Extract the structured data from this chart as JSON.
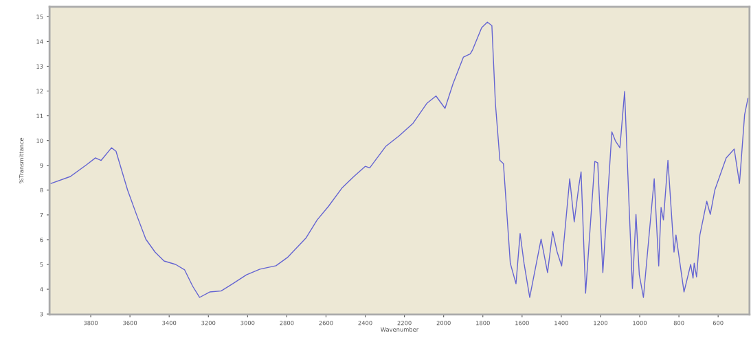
{
  "chart_data": {
    "type": "line",
    "xlabel": "Wavenumber",
    "ylabel": "%Transmittance",
    "xlim": [
      4010,
      440
    ],
    "ylim": [
      2.98,
      15.4
    ],
    "xticks": [
      3800,
      3600,
      3400,
      3200,
      3000,
      2800,
      2600,
      2400,
      2200,
      2000,
      1800,
      1600,
      1400,
      1200,
      1000,
      800,
      600
    ],
    "yticks": [
      3,
      4,
      5,
      6,
      7,
      8,
      9,
      10,
      11,
      12,
      13,
      14,
      15
    ],
    "grid": false,
    "marker": "none",
    "line_style": "solid",
    "series": [
      {
        "color": "#6464d2",
        "x": [
          4003,
          3904,
          3822,
          3776,
          3747,
          3694,
          3671,
          3647,
          3612,
          3566,
          3519,
          3472,
          3426,
          3367,
          3321,
          3280,
          3245,
          3193,
          3135,
          3076,
          3006,
          2937,
          2855,
          2797,
          2703,
          2645,
          2587,
          2517,
          2458,
          2400,
          2377,
          2296,
          2226,
          2156,
          2086,
          2039,
          1993,
          1952,
          1899,
          1864,
          1852,
          1806,
          1777,
          1754,
          1736,
          1713,
          1695,
          1660,
          1631,
          1610,
          1590,
          1561,
          1503,
          1470,
          1444,
          1421,
          1398,
          1357,
          1334,
          1310,
          1299,
          1276,
          1229,
          1214,
          1188,
          1142,
          1124,
          1101,
          1077,
          1054,
          1037,
          1019,
          1002,
          981,
          926,
          903,
          891,
          879,
          856,
          825,
          815,
          774,
          740,
          728,
          722,
          710,
          693,
          658,
          640,
          617,
          559,
          518,
          491,
          465,
          448
        ],
        "values": [
          8.27,
          8.55,
          9.02,
          9.3,
          9.2,
          9.71,
          9.57,
          8.93,
          8.0,
          7.0,
          6.02,
          5.5,
          5.14,
          5.0,
          4.78,
          4.12,
          3.67,
          3.89,
          3.93,
          4.22,
          4.58,
          4.81,
          4.95,
          5.28,
          6.06,
          6.8,
          7.35,
          8.1,
          8.55,
          8.96,
          8.9,
          9.76,
          10.2,
          10.7,
          11.5,
          11.8,
          11.3,
          12.3,
          13.37,
          13.5,
          13.67,
          14.56,
          14.78,
          14.64,
          11.5,
          9.2,
          9.07,
          5.05,
          4.22,
          6.25,
          5.05,
          3.67,
          6.02,
          4.67,
          6.33,
          5.5,
          4.94,
          8.46,
          6.72,
          8.19,
          8.74,
          3.84,
          9.16,
          9.1,
          4.67,
          10.35,
          9.99,
          9.71,
          11.98,
          7.35,
          4.03,
          7.02,
          4.58,
          3.67,
          8.46,
          4.94,
          7.3,
          6.8,
          9.2,
          5.5,
          6.19,
          3.89,
          5.0,
          4.45,
          5.05,
          4.5,
          6.19,
          7.55,
          7.02,
          8.0,
          9.3,
          9.66,
          8.27,
          11.04,
          11.7
        ]
      }
    ]
  }
}
